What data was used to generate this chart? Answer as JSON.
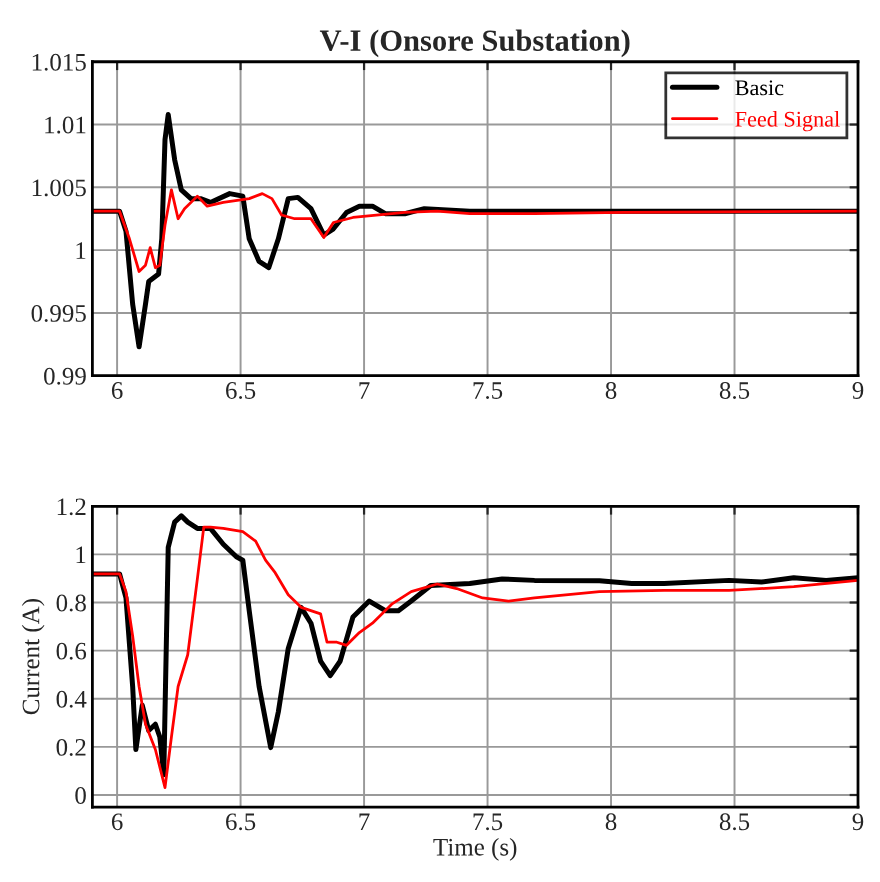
{
  "chart_data": [
    {
      "type": "line",
      "title": "V-I (Onsore Substation)",
      "xlim": [
        5.9,
        9
      ],
      "xticks": [
        6,
        6.5,
        7,
        7.5,
        8,
        8.5,
        9
      ],
      "ylim": [
        0.99,
        1.015
      ],
      "yticks": [
        0.99,
        0.995,
        1,
        1.005,
        1.01,
        1.015
      ],
      "grid": true,
      "legend": "top right",
      "series": [
        {
          "name": "Basic",
          "color": "#000000",
          "x": [
            5.9,
            6.01,
            6.036,
            6.063,
            6.089,
            6.115,
            6.128,
            6.168,
            6.181,
            6.194,
            6.207,
            6.233,
            6.26,
            6.299,
            6.338,
            6.378,
            6.456,
            6.509,
            6.535,
            6.575,
            6.614,
            6.653,
            6.693,
            6.732,
            6.785,
            6.837,
            6.876,
            6.929,
            6.981,
            7.034,
            7.086,
            7.165,
            7.244,
            7.428,
            7.69,
            8.215,
            9.0
          ],
          "values": [
            1.0031,
            1.0031,
            1.0015,
            0.9957,
            0.9923,
            0.9957,
            0.9975,
            0.9981,
            1.0009,
            1.0088,
            1.0108,
            1.0072,
            1.0048,
            1.0041,
            1.0041,
            1.0038,
            1.0045,
            1.0043,
            1.0009,
            0.9991,
            0.9986,
            1.0009,
            1.0041,
            1.0042,
            1.0033,
            1.0012,
            1.0017,
            1.003,
            1.0035,
            1.0035,
            1.0029,
            1.0029,
            1.0033,
            1.0031,
            1.0031,
            1.0031,
            1.0031
          ]
        },
        {
          "name": "Feed Signal",
          "color": "#ff0000",
          "x": [
            5.9,
            6.01,
            6.05,
            6.089,
            6.115,
            6.134,
            6.155,
            6.173,
            6.194,
            6.22,
            6.247,
            6.273,
            6.325,
            6.365,
            6.43,
            6.535,
            6.588,
            6.627,
            6.666,
            6.719,
            6.785,
            6.837,
            6.876,
            6.955,
            7.06,
            7.165,
            7.296,
            7.428,
            7.69,
            8.052,
            9.0
          ],
          "values": [
            1.0031,
            1.0031,
            1.0009,
            0.9983,
            0.9988,
            1.0002,
            0.9986,
            0.9988,
            1.002,
            1.0048,
            1.0025,
            1.0033,
            1.0043,
            1.0035,
            1.0038,
            1.0041,
            1.0045,
            1.0041,
            1.0028,
            1.0025,
            1.0025,
            1.001,
            1.0022,
            1.0026,
            1.0028,
            1.003,
            1.0031,
            1.0029,
            1.0029,
            1.003,
            1.0031
          ]
        }
      ]
    },
    {
      "type": "line",
      "xlabel": "Time (s)",
      "ylabel": "Current (A)",
      "xlim": [
        5.9,
        9
      ],
      "xticks": [
        6,
        6.5,
        7,
        7.5,
        8,
        8.5,
        9
      ],
      "ylim": [
        -0.05,
        1.2
      ],
      "yticks": [
        0,
        0.2,
        0.4,
        0.6,
        0.8,
        1,
        1.2
      ],
      "grid": true,
      "series": [
        {
          "color": "#000000",
          "x": [
            5.9,
            6.01,
            6.036,
            6.063,
            6.076,
            6.102,
            6.128,
            6.155,
            6.173,
            6.189,
            6.207,
            6.233,
            6.26,
            6.286,
            6.325,
            6.378,
            6.43,
            6.483,
            6.509,
            6.535,
            6.575,
            6.622,
            6.653,
            6.693,
            6.745,
            6.785,
            6.824,
            6.863,
            6.903,
            6.955,
            7.021,
            7.086,
            7.139,
            7.191,
            7.27,
            7.428,
            7.559,
            7.69,
            7.953,
            8.084,
            8.215,
            8.478,
            8.609,
            8.74,
            8.871,
            9.0
          ],
          "values": [
            0.919,
            0.919,
            0.819,
            0.451,
            0.189,
            0.373,
            0.268,
            0.294,
            0.241,
            0.084,
            1.029,
            1.134,
            1.16,
            1.134,
            1.108,
            1.108,
            1.042,
            0.99,
            0.976,
            0.766,
            0.451,
            0.197,
            0.346,
            0.609,
            0.78,
            0.714,
            0.556,
            0.496,
            0.556,
            0.74,
            0.806,
            0.766,
            0.766,
            0.806,
            0.871,
            0.879,
            0.898,
            0.892,
            0.89,
            0.879,
            0.879,
            0.892,
            0.885,
            0.903,
            0.892,
            0.903
          ]
        },
        {
          "color": "#ff0000",
          "x": [
            5.9,
            6.01,
            6.036,
            6.063,
            6.089,
            6.115,
            6.155,
            6.194,
            6.22,
            6.247,
            6.286,
            6.325,
            6.351,
            6.378,
            6.43,
            6.509,
            6.561,
            6.601,
            6.64,
            6.693,
            6.745,
            6.824,
            6.85,
            6.89,
            6.929,
            6.981,
            7.034,
            7.112,
            7.191,
            7.296,
            7.375,
            7.48,
            7.585,
            7.69,
            7.953,
            8.215,
            8.478,
            8.74,
            9.0
          ],
          "values": [
            0.919,
            0.919,
            0.845,
            0.661,
            0.451,
            0.294,
            0.189,
            0.031,
            0.241,
            0.451,
            0.583,
            0.898,
            1.113,
            1.113,
            1.108,
            1.095,
            1.055,
            0.976,
            0.924,
            0.832,
            0.78,
            0.753,
            0.635,
            0.635,
            0.622,
            0.675,
            0.714,
            0.793,
            0.845,
            0.877,
            0.858,
            0.819,
            0.806,
            0.819,
            0.845,
            0.85,
            0.85,
            0.866,
            0.892
          ]
        }
      ]
    }
  ]
}
